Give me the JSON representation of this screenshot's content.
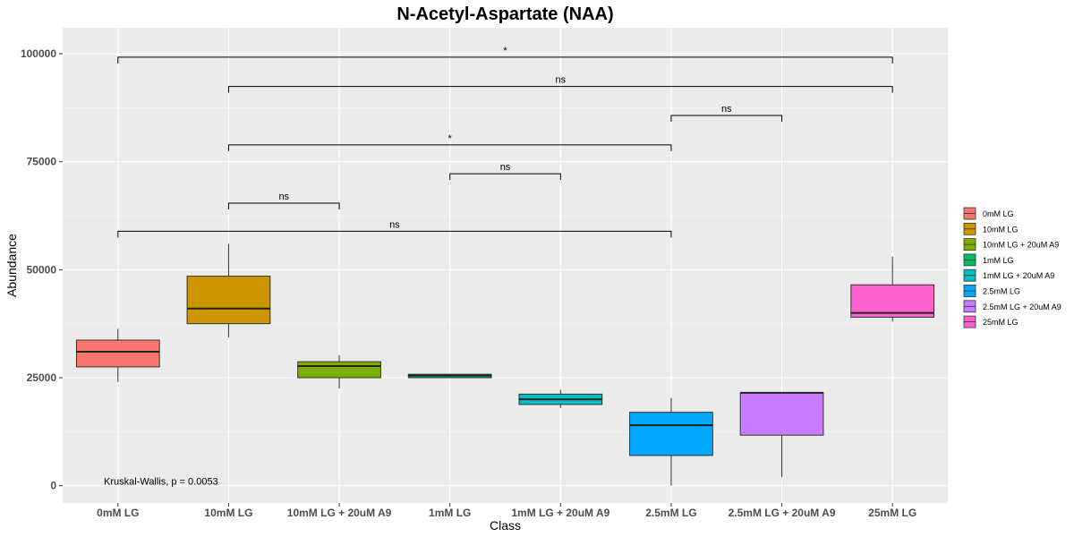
{
  "chart_data": {
    "type": "box",
    "title": "N-Acetyl-Aspartate (NAA)",
    "xlabel": "Class",
    "ylabel": "Abundance",
    "ylim": [
      -4000,
      106000
    ],
    "y_ticks": [
      0,
      25000,
      50000,
      75000,
      100000
    ],
    "y_tick_labels": [
      "0",
      "25000",
      "50000",
      "75000",
      "100000"
    ],
    "grid": true,
    "legend_position": "right",
    "categories": [
      "0mM LG",
      "10mM LG",
      "10mM LG + 20uM A9",
      "1mM LG",
      "1mM LG + 20uM A9",
      "2.5mM LG",
      "2.5mM LG + 20uM A9",
      "25mM LG"
    ],
    "colors": [
      "#F8766D",
      "#CD9600",
      "#7CAE00",
      "#00BE67",
      "#00BFC4",
      "#00A9FF",
      "#C77CFF",
      "#FF61CC"
    ],
    "boxes": [
      {
        "min": 24000,
        "q1": 27500,
        "median": 31000,
        "q3": 33700,
        "max": 36300
      },
      {
        "min": 34300,
        "q1": 37500,
        "median": 41000,
        "q3": 48500,
        "max": 56000
      },
      {
        "min": 22500,
        "q1": 25000,
        "median": 27700,
        "q3": 28700,
        "max": 30200
      },
      {
        "min": 25000,
        "q1": 25000,
        "median": 25500,
        "q3": 25800,
        "max": 25900
      },
      {
        "min": 18000,
        "q1": 18800,
        "median": 20000,
        "q3": 21200,
        "max": 22200
      },
      {
        "min": 0,
        "q1": 7000,
        "median": 14000,
        "q3": 17000,
        "max": 20300
      },
      {
        "min": 2000,
        "q1": 11700,
        "median": 21500,
        "q3": 21500,
        "max": 21500
      },
      {
        "min": 38000,
        "q1": 39000,
        "median": 40000,
        "q3": 46500,
        "max": 53000
      }
    ],
    "comparisons": [
      {
        "from": 0,
        "to": 7,
        "y": 99200,
        "label": "*"
      },
      {
        "from": 1,
        "to": 7,
        "y": 92400,
        "label": "ns"
      },
      {
        "from": 5,
        "to": 6,
        "y": 85700,
        "label": "ns"
      },
      {
        "from": 1,
        "to": 5,
        "y": 78900,
        "label": "*"
      },
      {
        "from": 3,
        "to": 4,
        "y": 72200,
        "label": "ns"
      },
      {
        "from": 1,
        "to": 2,
        "y": 65400,
        "label": "ns"
      },
      {
        "from": 0,
        "to": 5,
        "y": 58900,
        "label": "ns"
      }
    ],
    "annotation": "Kruskal-Wallis, p = 0.0053"
  }
}
